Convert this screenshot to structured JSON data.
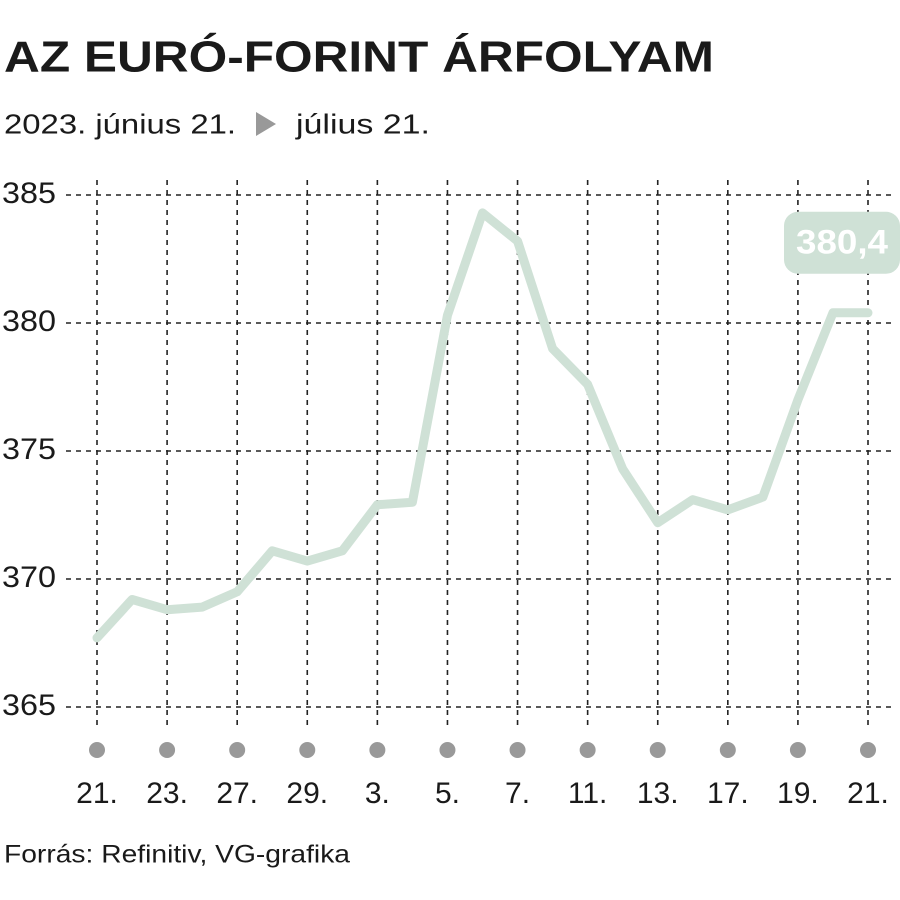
{
  "chart_data": {
    "type": "line",
    "title": "AZ EURÓ-FORINT ÁRFOLYAM",
    "subtitle_start": "2023. június 21.",
    "subtitle_end": "július 21.",
    "source": "Forrás: Refinitiv, VG-grafika",
    "categories": [
      "21.",
      null,
      "23.",
      null,
      "27.",
      null,
      "29.",
      null,
      "3.",
      null,
      "5.",
      null,
      "7.",
      null,
      "11.",
      null,
      "13.",
      null,
      "17.",
      null,
      "19.",
      null,
      "21."
    ],
    "values": [
      367.7,
      369.2,
      368.8,
      368.9,
      369.5,
      371.1,
      370.7,
      371.1,
      372.9,
      373.0,
      380.3,
      384.3,
      383.2,
      379.0,
      377.6,
      374.3,
      372.2,
      373.1,
      372.7,
      373.2,
      377.0,
      380.4,
      380.4
    ],
    "value_labels": [
      null,
      null,
      null,
      null,
      null,
      null,
      null,
      null,
      null,
      null,
      null,
      null,
      null,
      null,
      null,
      null,
      null,
      null,
      null,
      null,
      null,
      null,
      "380,4"
    ],
    "color": "#cfe1d6",
    "ylim": [
      365,
      385
    ],
    "yticks": [
      365,
      370,
      375,
      380,
      385
    ],
    "grid": true
  }
}
